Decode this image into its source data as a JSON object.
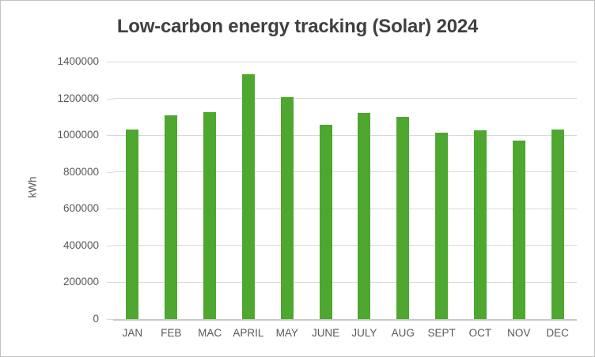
{
  "window": {
    "background_color": "#ffffff",
    "border_color": "#c3c3c3"
  },
  "chart_data": {
    "type": "bar",
    "title": "Low-carbon energy tracking (Solar) 2024",
    "xlabel": "",
    "ylabel": "kWh",
    "categories": [
      "JAN",
      "FEB",
      "MAC",
      "APRIL",
      "MAY",
      "JUNE",
      "JULY",
      "AUG",
      "SEPT",
      "OCT",
      "NOV",
      "DEC"
    ],
    "values": [
      1030000,
      1110000,
      1125000,
      1330000,
      1205000,
      1055000,
      1120000,
      1100000,
      1015000,
      1025000,
      970000,
      1030000
    ],
    "series_name": "kWh",
    "ylim": [
      0,
      1400000
    ],
    "ytick_step": 200000,
    "ytick_labels": [
      "0",
      "200000",
      "400000",
      "600000",
      "800000",
      "1000000",
      "1200000",
      "1400000"
    ],
    "grid": "horizontal",
    "legend_position": "none",
    "bar_color": "#4EA72E",
    "gridline_color": "#D9D9D9",
    "axis_line_color": "#C9C9C9",
    "tick_label_color": "#595959",
    "title_color": "#404040"
  }
}
